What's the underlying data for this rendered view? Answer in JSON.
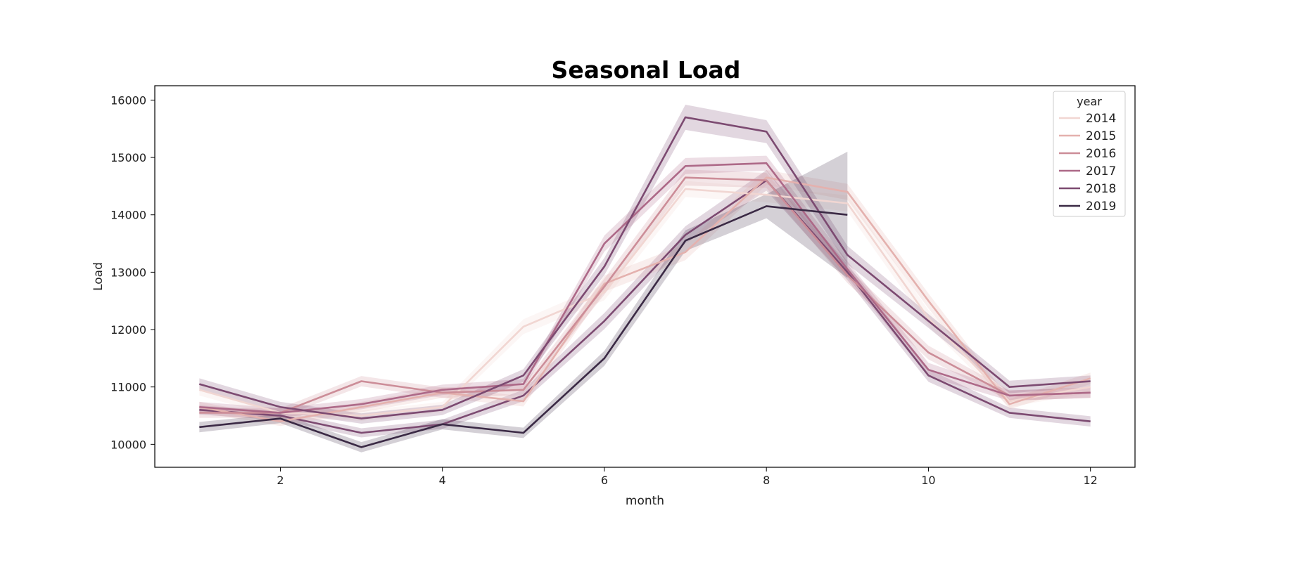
{
  "chart_data": {
    "type": "line",
    "title": "Seasonal Load",
    "xlabel": "month",
    "ylabel": "Load",
    "xlim": [
      0.45,
      12.55
    ],
    "ylim": [
      9600,
      16250
    ],
    "xticks": [
      2,
      4,
      6,
      8,
      10,
      12
    ],
    "yticks": [
      10000,
      11000,
      12000,
      13000,
      14000,
      15000,
      16000
    ],
    "grid": false,
    "legend": {
      "title": "year",
      "placement": "top-right"
    },
    "series": [
      {
        "name": "2014",
        "color": "#f1d6d2",
        "x": [
          1,
          2,
          3,
          4,
          5,
          6,
          7,
          8,
          9,
          10,
          11,
          12
        ],
        "y": [
          10950,
          10550,
          10500,
          10650,
          12050,
          12650,
          14450,
          14350,
          14200,
          12200,
          10750,
          11000
        ],
        "band": [
          100,
          90,
          90,
          90,
          130,
          140,
          140,
          130,
          140,
          140,
          100,
          100
        ]
      },
      {
        "name": "2015",
        "color": "#e4b1ae",
        "x": [
          1,
          2,
          3,
          4,
          5,
          6,
          7,
          8,
          9,
          10,
          11,
          12
        ],
        "y": [
          10650,
          10400,
          10650,
          10900,
          10750,
          12800,
          13350,
          14650,
          14400,
          12500,
          10700,
          11150
        ],
        "band": [
          90,
          80,
          90,
          90,
          90,
          140,
          140,
          130,
          140,
          130,
          90,
          100
        ]
      },
      {
        "name": "2016",
        "color": "#cc8d98",
        "x": [
          1,
          2,
          3,
          4,
          5,
          6,
          7,
          8,
          9,
          10,
          11,
          12
        ],
        "y": [
          10550,
          10550,
          11100,
          10900,
          10950,
          12750,
          14650,
          14600,
          12950,
          11600,
          10850,
          10900
        ],
        "band": [
          90,
          80,
          90,
          90,
          90,
          140,
          140,
          130,
          140,
          120,
          90,
          90
        ]
      },
      {
        "name": "2017",
        "color": "#ad6988",
        "x": [
          1,
          2,
          3,
          4,
          5,
          6,
          7,
          8,
          9,
          10,
          11,
          12
        ],
        "y": [
          10650,
          10550,
          10700,
          10950,
          11050,
          13500,
          14850,
          14900,
          13050,
          11300,
          10850,
          10900
        ],
        "band": [
          90,
          80,
          90,
          90,
          90,
          140,
          140,
          130,
          140,
          120,
          90,
          90
        ]
      },
      {
        "name": "2018",
        "color": "#7c4a71",
        "x": [
          1,
          2,
          3,
          4,
          5,
          6,
          7,
          8,
          9,
          10,
          11,
          12
        ],
        "y": [
          11050,
          10650,
          10450,
          10600,
          11200,
          13100,
          15700,
          15450,
          13300,
          12150,
          11000,
          11100
        ],
        "band": [
          100,
          90,
          90,
          90,
          110,
          150,
          220,
          200,
          160,
          120,
          110,
          100
        ]
      },
      {
        "name": "2019",
        "color": "#3b2a45",
        "x": [
          1,
          2,
          3,
          4,
          5,
          6,
          7,
          8,
          9
        ],
        "y": [
          10300,
          10450,
          9950,
          10350,
          10200,
          11500,
          13550,
          14150,
          14000
        ],
        "band": [
          90,
          80,
          90,
          90,
          90,
          130,
          180,
          210,
          1100
        ]
      }
    ],
    "extra_series": [
      {
        "color": "#7c4a71",
        "x": [
          1,
          2,
          3,
          4,
          5,
          6,
          7,
          8,
          9,
          10,
          11,
          12
        ],
        "y": [
          10600,
          10500,
          10200,
          10350,
          10850,
          12150,
          13650,
          14600,
          13000,
          11200,
          10550,
          10400
        ],
        "band": [
          80,
          80,
          80,
          80,
          100,
          140,
          150,
          180,
          140,
          110,
          90,
          90
        ]
      }
    ]
  }
}
